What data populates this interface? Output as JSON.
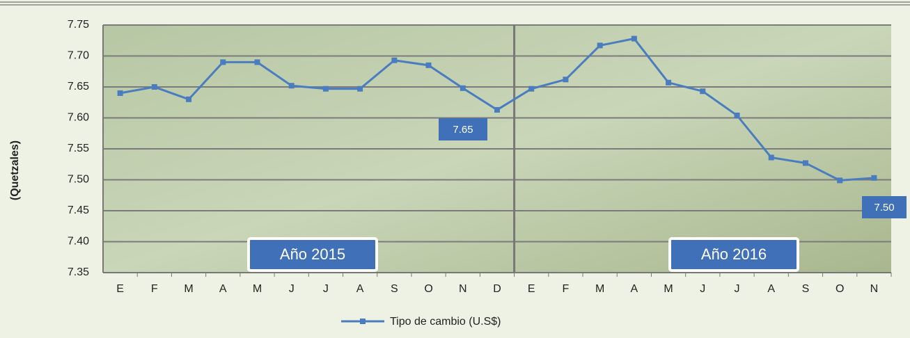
{
  "chart_data": {
    "type": "line",
    "y_label": "(Quetzales)",
    "categories": [
      "E",
      "F",
      "M",
      "A",
      "M",
      "J",
      "J",
      "A",
      "S",
      "O",
      "N",
      "D",
      "E",
      "F",
      "M",
      "A",
      "M",
      "J",
      "J",
      "A",
      "S",
      "O",
      "N"
    ],
    "series": [
      {
        "name": "Tipo de cambio (U.S$)",
        "color": "#4a7cc0",
        "values": [
          7.64,
          7.65,
          7.63,
          7.69,
          7.69,
          7.652,
          7.647,
          7.647,
          7.693,
          7.685,
          7.648,
          7.613,
          7.647,
          7.662,
          7.717,
          7.728,
          7.657,
          7.643,
          7.604,
          7.536,
          7.527,
          7.499,
          7.503
        ]
      }
    ],
    "ylim": [
      7.35,
      7.75
    ],
    "yticks": [
      7.35,
      {
        "value": 7.4,
        "label": "7.40"
      },
      7.45,
      {
        "value": 7.5,
        "label": "7.50"
      },
      7.55,
      {
        "value": 7.6,
        "label": "7.60"
      },
      7.65,
      {
        "value": 7.7,
        "label": "7.70"
      },
      7.75
    ],
    "grid": true,
    "annotations": [
      {
        "text": "7.65"
      },
      {
        "text": "7.50"
      },
      {
        "text": "Año 2015"
      },
      {
        "text": "Año 2016"
      }
    ]
  }
}
